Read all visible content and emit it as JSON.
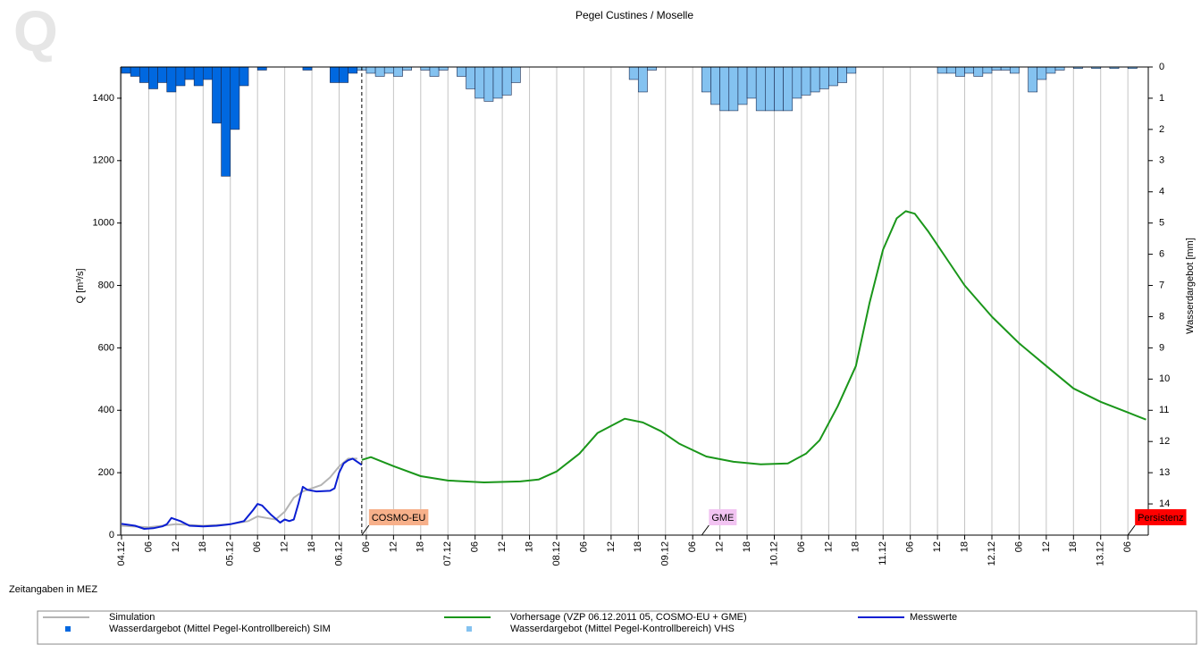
{
  "chart_data": {
    "type": "line",
    "title": "Pegel Custines / Moselle",
    "logo": "Q",
    "ylabel": "Q [m³/s]",
    "y2label": "Wasserdargebot [mm]",
    "time_note": "Zeitangaben in MEZ",
    "grid": true,
    "xlim": [
      "2011-12-04T00:00",
      "2011-12-13T10:30"
    ],
    "ylim": [
      0,
      1500
    ],
    "yticks": [
      0,
      200,
      400,
      600,
      800,
      1000,
      1200,
      1400
    ],
    "y2lim": [
      15,
      0
    ],
    "y2ticks": [
      0,
      1,
      2,
      3,
      4,
      5,
      6,
      7,
      8,
      9,
      10,
      11,
      12,
      13,
      14
    ],
    "xticks": [
      {
        "value": "2011-12-04T00:00",
        "label": "04.12"
      },
      {
        "value": "2011-12-04T06:00",
        "label": "06"
      },
      {
        "value": "2011-12-04T12:00",
        "label": "12"
      },
      {
        "value": "2011-12-04T18:00",
        "label": "18"
      },
      {
        "value": "2011-12-05T00:00",
        "label": "05.12"
      },
      {
        "value": "2011-12-05T06:00",
        "label": "06"
      },
      {
        "value": "2011-12-05T12:00",
        "label": "12"
      },
      {
        "value": "2011-12-05T18:00",
        "label": "18"
      },
      {
        "value": "2011-12-06T00:00",
        "label": "06.12"
      },
      {
        "value": "2011-12-06T06:00",
        "label": "06"
      },
      {
        "value": "2011-12-06T12:00",
        "label": "12"
      },
      {
        "value": "2011-12-06T18:00",
        "label": "18"
      },
      {
        "value": "2011-12-07T00:00",
        "label": "07.12"
      },
      {
        "value": "2011-12-07T06:00",
        "label": "06"
      },
      {
        "value": "2011-12-07T12:00",
        "label": "12"
      },
      {
        "value": "2011-12-07T18:00",
        "label": "18"
      },
      {
        "value": "2011-12-08T00:00",
        "label": "08.12"
      },
      {
        "value": "2011-12-08T06:00",
        "label": "06"
      },
      {
        "value": "2011-12-08T12:00",
        "label": "12"
      },
      {
        "value": "2011-12-08T18:00",
        "label": "18"
      },
      {
        "value": "2011-12-09T00:00",
        "label": "09.12"
      },
      {
        "value": "2011-12-09T06:00",
        "label": "06"
      },
      {
        "value": "2011-12-09T12:00",
        "label": "12"
      },
      {
        "value": "2011-12-09T18:00",
        "label": "18"
      },
      {
        "value": "2011-12-10T00:00",
        "label": "10.12"
      },
      {
        "value": "2011-12-10T06:00",
        "label": "06"
      },
      {
        "value": "2011-12-10T12:00",
        "label": "12"
      },
      {
        "value": "2011-12-10T18:00",
        "label": "18"
      },
      {
        "value": "2011-12-11T00:00",
        "label": "11.12"
      },
      {
        "value": "2011-12-11T06:00",
        "label": "06"
      },
      {
        "value": "2011-12-11T12:00",
        "label": "12"
      },
      {
        "value": "2011-12-11T18:00",
        "label": "18"
      },
      {
        "value": "2011-12-12T00:00",
        "label": "12.12"
      },
      {
        "value": "2011-12-12T06:00",
        "label": "06"
      },
      {
        "value": "2011-12-12T12:00",
        "label": "12"
      },
      {
        "value": "2011-12-12T18:00",
        "label": "18"
      },
      {
        "value": "2011-12-13T00:00",
        "label": "13.12"
      },
      {
        "value": "2011-12-13T06:00",
        "label": "06"
      }
    ],
    "forecast_start": "2011-12-06T05:00",
    "annotations": [
      {
        "text": "COSMO-EU",
        "x": "2011-12-06T05:00",
        "color": "#f7b08a"
      },
      {
        "text": "GME",
        "x": "2011-12-09T08:00",
        "color": "#f2c4f2"
      },
      {
        "text": "Persistenz",
        "x": "2011-12-13T06:00",
        "color": "#ff0000"
      }
    ],
    "series": [
      {
        "name": "Simulation",
        "type": "line",
        "color": "#b4b4b4",
        "x": [
          "2011-12-04T00:00",
          "2011-12-04T06:00",
          "2011-12-04T12:00",
          "2011-12-04T18:00",
          "2011-12-05T00:00",
          "2011-12-05T04:00",
          "2011-12-05T06:00",
          "2011-12-05T08:00",
          "2011-12-05T10:00",
          "2011-12-05T12:00",
          "2011-12-05T14:00",
          "2011-12-05T16:00",
          "2011-12-05T18:00",
          "2011-12-05T20:00",
          "2011-12-05T22:00",
          "2011-12-06T00:00",
          "2011-12-06T02:00",
          "2011-12-06T04:00"
        ],
        "values": [
          30,
          25,
          35,
          30,
          35,
          45,
          60,
          55,
          50,
          75,
          120,
          140,
          150,
          160,
          185,
          220,
          245,
          245
        ]
      },
      {
        "name": "Vorhersage (VZP 06.12.2011 05, COSMO-EU + GME)",
        "type": "line",
        "color": "#1a961a",
        "x": [
          "2011-12-06T05:00",
          "2011-12-06T07:00",
          "2011-12-06T12:00",
          "2011-12-06T18:00",
          "2011-12-07T00:00",
          "2011-12-07T08:00",
          "2011-12-07T16:00",
          "2011-12-07T20:00",
          "2011-12-08T00:00",
          "2011-12-08T05:00",
          "2011-12-08T09:00",
          "2011-12-08T15:00",
          "2011-12-08T19:00",
          "2011-12-08T23:00",
          "2011-12-09T03:00",
          "2011-12-09T09:00",
          "2011-12-09T15:00",
          "2011-12-09T21:00",
          "2011-12-10T03:00",
          "2011-12-10T07:00",
          "2011-12-10T10:00",
          "2011-12-10T14:00",
          "2011-12-10T18:00",
          "2011-12-10T21:00",
          "2011-12-11T00:00",
          "2011-12-11T03:00",
          "2011-12-11T05:00",
          "2011-12-11T07:00",
          "2011-12-11T10:00",
          "2011-12-11T14:00",
          "2011-12-11T18:00",
          "2011-12-12T00:00",
          "2011-12-12T06:00",
          "2011-12-12T12:00",
          "2011-12-12T18:00",
          "2011-12-13T00:00",
          "2011-12-13T06:00",
          "2011-12-13T10:00"
        ],
        "values": [
          241,
          250,
          221,
          189,
          175,
          169,
          172,
          178,
          204,
          261,
          327,
          373,
          361,
          333,
          293,
          252,
          235,
          227,
          230,
          261,
          304,
          413,
          542,
          743,
          915,
          1015,
          1038,
          1030,
          972,
          886,
          800,
          700,
          615,
          542,
          470,
          427,
          393,
          370
        ]
      },
      {
        "name": "Messwerte",
        "type": "line",
        "color": "#0a1ed2",
        "x": [
          "2011-12-04T00:00",
          "2011-12-04T03:00",
          "2011-12-04T05:00",
          "2011-12-04T07:00",
          "2011-12-04T09:00",
          "2011-12-04T10:00",
          "2011-12-04T11:00",
          "2011-12-04T13:00",
          "2011-12-04T15:00",
          "2011-12-04T18:00",
          "2011-12-04T21:00",
          "2011-12-05T00:00",
          "2011-12-05T03:00",
          "2011-12-05T05:00",
          "2011-12-05T06:00",
          "2011-12-05T07:00",
          "2011-12-05T09:00",
          "2011-12-05T11:00",
          "2011-12-05T12:00",
          "2011-12-05T13:00",
          "2011-12-05T14:00",
          "2011-12-05T15:00",
          "2011-12-05T16:00",
          "2011-12-05T17:00",
          "2011-12-05T19:00",
          "2011-12-05T22:00",
          "2011-12-05T23:00",
          "2011-12-06T00:00",
          "2011-12-06T01:00",
          "2011-12-06T02:00",
          "2011-12-06T03:00",
          "2011-12-06T04:00",
          "2011-12-06T05:00"
        ],
        "values": [
          36,
          30,
          20,
          22,
          28,
          35,
          55,
          45,
          30,
          28,
          30,
          35,
          45,
          80,
          100,
          95,
          65,
          40,
          50,
          45,
          50,
          100,
          155,
          145,
          140,
          142,
          150,
          200,
          230,
          240,
          245,
          235,
          225
        ]
      },
      {
        "name": "Wasserdargebot (Mittel Pegel-Kontrollbereich) SIM",
        "type": "bar",
        "axis": "y2",
        "color": "#0068e0",
        "x": [
          "2011-12-04T00:00",
          "2011-12-04T02:00",
          "2011-12-04T04:00",
          "2011-12-04T06:00",
          "2011-12-04T08:00",
          "2011-12-04T10:00",
          "2011-12-04T12:00",
          "2011-12-04T14:00",
          "2011-12-04T16:00",
          "2011-12-04T18:00",
          "2011-12-04T20:00",
          "2011-12-04T22:00",
          "2011-12-05T00:00",
          "2011-12-05T02:00",
          "2011-12-05T06:00",
          "2011-12-05T16:00",
          "2011-12-05T22:00",
          "2011-12-06T00:00",
          "2011-12-06T02:00"
        ],
        "values": [
          0.2,
          0.3,
          0.5,
          0.7,
          0.5,
          0.8,
          0.6,
          0.4,
          0.6,
          0.4,
          1.8,
          3.5,
          2.0,
          0.6,
          0.1,
          0.1,
          0.5,
          0.5,
          0.2
        ]
      },
      {
        "name": "Wasserdargebot (Mittel Pegel-Kontrollbereich) VHS",
        "type": "bar",
        "axis": "y2",
        "color": "#84c2f0",
        "x": [
          "2011-12-06T04:00",
          "2011-12-06T06:00",
          "2011-12-06T08:00",
          "2011-12-06T10:00",
          "2011-12-06T12:00",
          "2011-12-06T14:00",
          "2011-12-06T18:00",
          "2011-12-06T20:00",
          "2011-12-06T22:00",
          "2011-12-07T02:00",
          "2011-12-07T04:00",
          "2011-12-07T06:00",
          "2011-12-07T08:00",
          "2011-12-07T10:00",
          "2011-12-07T12:00",
          "2011-12-07T14:00",
          "2011-12-08T16:00",
          "2011-12-08T18:00",
          "2011-12-08T20:00",
          "2011-12-09T08:00",
          "2011-12-09T10:00",
          "2011-12-09T12:00",
          "2011-12-09T14:00",
          "2011-12-09T16:00",
          "2011-12-09T18:00",
          "2011-12-09T20:00",
          "2011-12-09T22:00",
          "2011-12-10T00:00",
          "2011-12-10T02:00",
          "2011-12-10T04:00",
          "2011-12-10T06:00",
          "2011-12-10T08:00",
          "2011-12-10T10:00",
          "2011-12-10T12:00",
          "2011-12-10T14:00",
          "2011-12-10T16:00",
          "2011-12-11T12:00",
          "2011-12-11T14:00",
          "2011-12-11T16:00",
          "2011-12-11T18:00",
          "2011-12-11T20:00",
          "2011-12-11T22:00",
          "2011-12-12T00:00",
          "2011-12-12T02:00",
          "2011-12-12T04:00",
          "2011-12-12T08:00",
          "2011-12-12T10:00",
          "2011-12-12T12:00",
          "2011-12-12T14:00",
          "2011-12-12T18:00",
          "2011-12-12T22:00",
          "2011-12-13T02:00",
          "2011-12-13T06:00"
        ],
        "values": [
          0.1,
          0.2,
          0.3,
          0.2,
          0.3,
          0.1,
          0.1,
          0.3,
          0.1,
          0.3,
          0.7,
          1.0,
          1.1,
          1.0,
          0.9,
          0.5,
          0.4,
          0.8,
          0.1,
          0.8,
          1.2,
          1.4,
          1.4,
          1.2,
          1.0,
          1.4,
          1.4,
          1.4,
          1.4,
          1.0,
          0.9,
          0.8,
          0.7,
          0.6,
          0.5,
          0.2,
          0.2,
          0.2,
          0.3,
          0.2,
          0.3,
          0.2,
          0.1,
          0.1,
          0.2,
          0.8,
          0.4,
          0.2,
          0.1,
          0.05,
          0.05,
          0.05,
          0.05
        ]
      }
    ]
  }
}
